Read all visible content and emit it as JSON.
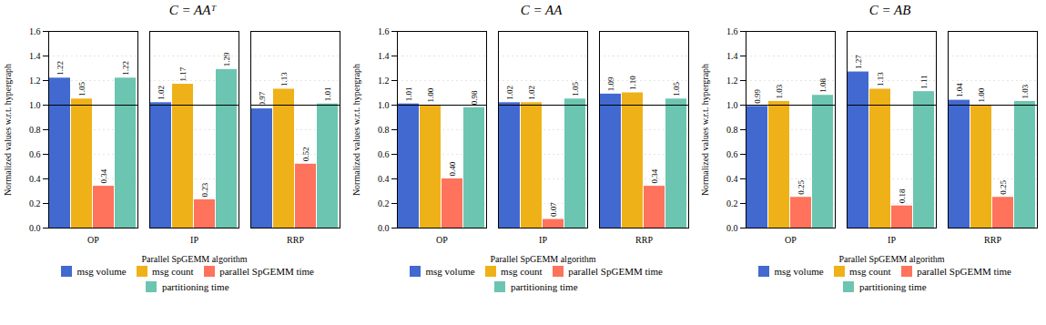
{
  "chart_data": [
    {
      "type": "bar",
      "title": "C = AAᵀ",
      "xlabel": "Parallel SpGEMM algorithm",
      "ylabel": "Normalized values w.r.t. hypergraph",
      "categories": [
        "OP",
        "IP",
        "RRP"
      ],
      "series": [
        {
          "name": "msg volume",
          "values": [
            1.22,
            1.02,
            0.97
          ],
          "value_labels": [
            "1.22",
            "1.02",
            "0.97"
          ]
        },
        {
          "name": "msg count",
          "values": [
            1.05,
            1.17,
            1.13
          ],
          "value_labels": [
            "1.05",
            "1.17",
            "1.13"
          ]
        },
        {
          "name": "parallel SpGEMM time",
          "values": [
            0.34,
            0.23,
            0.52
          ],
          "value_labels": [
            "0.34",
            "0.23",
            "0.52"
          ]
        },
        {
          "name": "partitioning time",
          "values": [
            1.22,
            1.29,
            1.01
          ],
          "value_labels": [
            "1.22",
            "1.29",
            "1.01"
          ]
        }
      ],
      "ylim": [
        0,
        1.6
      ],
      "yticks": [
        {
          "value": 0,
          "label": "0.0"
        },
        0.2,
        0.4,
        0.6,
        0.8,
        {
          "value": 1,
          "label": "1.0"
        },
        1.2,
        1.4,
        1.6
      ],
      "grid": true,
      "legend": "bottom",
      "data_labels": true,
      "reference_line": 1
    },
    {
      "type": "bar",
      "title": "C = AA",
      "xlabel": "Parallel SpGEMM algorithm",
      "ylabel": "Normalized values w.r.t. hypergraph",
      "categories": [
        "OP",
        "IP",
        "RRP"
      ],
      "series": [
        {
          "name": "msg volume",
          "values": [
            1.01,
            1.02,
            1.09
          ],
          "value_labels": [
            "1.01",
            "1.02",
            "1.09"
          ]
        },
        {
          "name": "msg count",
          "values": [
            1.0,
            1.02,
            1.1
          ],
          "value_labels": [
            "1.00",
            "1.02",
            "1.10"
          ]
        },
        {
          "name": "parallel SpGEMM time",
          "values": [
            0.4,
            0.07,
            0.34
          ],
          "value_labels": [
            "0.40",
            "0.07",
            "0.34"
          ]
        },
        {
          "name": "partitioning time",
          "values": [
            0.98,
            1.05,
            1.05
          ],
          "value_labels": [
            "0.98",
            "1.05",
            "1.05"
          ]
        }
      ],
      "ylim": [
        0,
        1.6
      ],
      "yticks": [
        {
          "value": 0,
          "label": "0.0"
        },
        0.2,
        0.4,
        0.6,
        0.8,
        {
          "value": 1,
          "label": "1.0"
        },
        1.2,
        1.4,
        1.6
      ],
      "grid": true,
      "legend": "bottom",
      "data_labels": true,
      "reference_line": 1
    },
    {
      "type": "bar",
      "title": "C = AB",
      "xlabel": "Parallel SpGEMM algorithm",
      "ylabel": "Normalized values w.r.t. hypergraph",
      "categories": [
        "OP",
        "IP",
        "RRP"
      ],
      "series": [
        {
          "name": "msg volume",
          "values": [
            0.99,
            1.27,
            1.04
          ],
          "value_labels": [
            "0.99",
            "1.27",
            "1.04"
          ]
        },
        {
          "name": "msg count",
          "values": [
            1.03,
            1.13,
            1.0
          ],
          "value_labels": [
            "1.03",
            "1.13",
            "1.00"
          ]
        },
        {
          "name": "parallel SpGEMM time",
          "values": [
            0.25,
            0.18,
            0.25
          ],
          "value_labels": [
            "0.25",
            "0.18",
            "0.25"
          ]
        },
        {
          "name": "partitioning time",
          "values": [
            1.08,
            1.11,
            1.03
          ],
          "value_labels": [
            "1.08",
            "1.11",
            "1.03"
          ]
        }
      ],
      "ylim": [
        0,
        1.6
      ],
      "yticks": [
        {
          "value": 0,
          "label": "0.0"
        },
        0.2,
        0.4,
        0.6,
        0.8,
        {
          "value": 1,
          "label": "1.0"
        },
        1.2,
        1.4,
        1.6
      ],
      "grid": true,
      "legend": "bottom",
      "data_labels": true,
      "reference_line": 1
    }
  ]
}
